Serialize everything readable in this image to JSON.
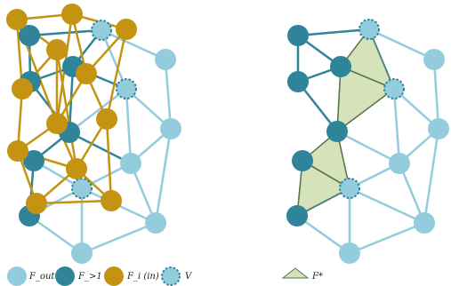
{
  "colors": {
    "f_out": "#93ccdc",
    "f_gt1": "#2f8499",
    "f_in": "#c49312",
    "v_fill": "#93ccdc",
    "v_stroke": "#2f8499",
    "f_star_fill": "#d5e2ba",
    "f_star_stroke": "#56754a",
    "edge_light": "#93ccdc",
    "edge_dark": "#2f8499",
    "edge_gold": "#c49312"
  },
  "legend": {
    "f_out": "F_out",
    "f_gt1": "F_>1",
    "f_in": "F_i (in)",
    "v": "V",
    "f_star": "F*"
  }
}
